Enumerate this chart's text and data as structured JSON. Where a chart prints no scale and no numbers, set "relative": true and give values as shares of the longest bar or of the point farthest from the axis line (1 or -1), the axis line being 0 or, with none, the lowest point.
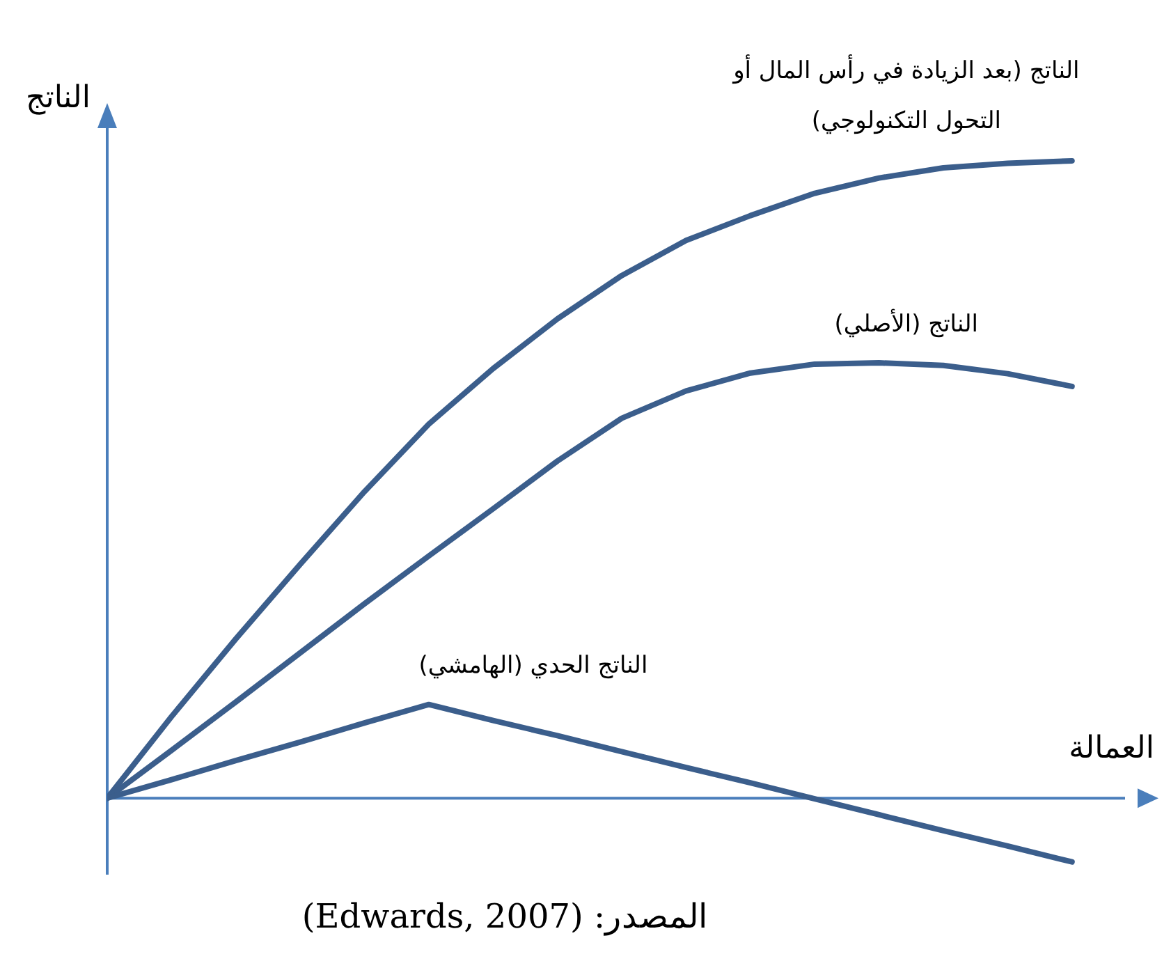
{
  "chart_data": {
    "type": "line",
    "relative": true,
    "ylabel": "الناتج",
    "xlabel": "العمالة",
    "annotations": [
      "المصدر: (Edwards, 2007)"
    ],
    "marker": "none",
    "line_style": "solid",
    "ref_lines": [
      {
        "axis": "y",
        "value": 0,
        "color": "#4a7ebb"
      }
    ],
    "categories": [
      null,
      null,
      null,
      null,
      null,
      null,
      null,
      null,
      null,
      null,
      null,
      null,
      null,
      null,
      null,
      null
    ],
    "series": [
      {
        "name": "الناتج (بعد الزيادة في رأس المال أو التحول التكنولوجي)",
        "color": "#3b5e8c",
        "values": [
          0,
          0.128,
          0.25,
          0.367,
          0.481,
          0.587,
          0.674,
          0.752,
          0.82,
          0.875,
          0.914,
          0.949,
          0.973,
          0.989,
          0.996,
          1
        ]
      },
      {
        "name": "الناتج (الأصلي)",
        "color": "#3b5e8c",
        "values": [
          0,
          0.075,
          0.151,
          0.228,
          0.305,
          0.38,
          0.454,
          0.529,
          0.596,
          0.639,
          0.667,
          0.681,
          0.683,
          0.679,
          0.666,
          0.646
        ]
      },
      {
        "name": "الناتج الحدي (الهامشي)",
        "color": "#3b5e8c",
        "values": [
          0,
          0.029,
          0.059,
          0.088,
          0.118,
          0.147,
          0.122,
          0.098,
          0.073,
          0.048,
          0.024,
          -0.001,
          -0.026,
          -0.051,
          -0.075,
          -0.1
        ]
      }
    ]
  }
}
